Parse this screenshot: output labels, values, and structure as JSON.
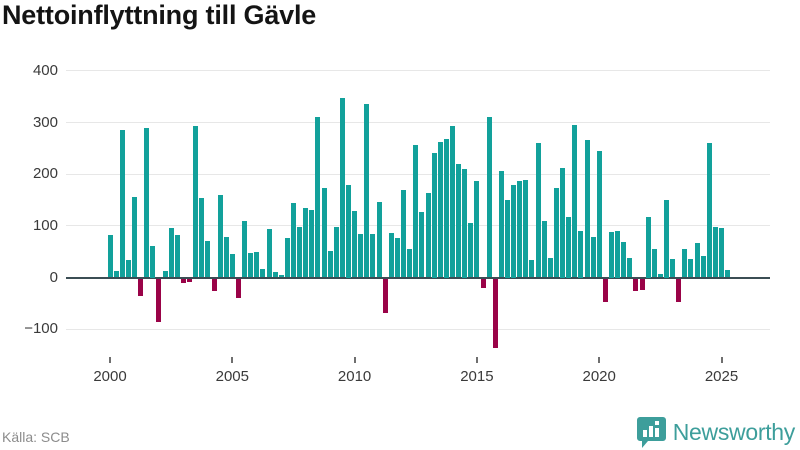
{
  "title": "Nettoinflyttning till Gävle",
  "source_label": "Källa: SCB",
  "brand": {
    "name": "Newsworthy"
  },
  "colors": {
    "positive_bar": "#12a19b",
    "negative_bar": "#9a0348",
    "zero_line": "#3b4d54",
    "gridline": "#e7e7e7",
    "axis_text": "#3a3a3a",
    "title_text": "#141414",
    "source_text": "#8c8c8c",
    "brand_teal": "#3d9e9b"
  },
  "chart_data": {
    "type": "bar",
    "title": "Nettoinflyttning till Gävle",
    "xlabel": "",
    "ylabel": "",
    "frequency": "quarterly",
    "first_period": "2000 Q1",
    "last_period": "2025 Q2",
    "y_ticks": [
      400,
      300,
      200,
      100,
      0,
      -100
    ],
    "ylim": [
      -160,
      415
    ],
    "x_tick_labels": [
      "2000",
      "2005",
      "2010",
      "2015",
      "2020",
      "2025"
    ],
    "grid": true,
    "legend": "none",
    "values_by_year": {
      "2000": [
        82,
        12,
        285,
        34
      ],
      "2001": [
        156,
        -34,
        290,
        61
      ],
      "2002": [
        -85,
        13,
        95,
        83
      ],
      "2003": [
        -8,
        -6,
        293,
        154
      ],
      "2004": [
        71,
        -24,
        160,
        78
      ],
      "2005": [
        45,
        -38,
        109,
        47
      ],
      "2006": [
        50,
        16,
        94,
        10
      ],
      "2007": [
        5,
        76,
        145,
        97
      ],
      "2008": [
        135,
        131,
        310,
        174
      ],
      "2009": [
        52,
        97,
        347,
        179
      ],
      "2010": [
        129,
        85,
        336,
        84
      ],
      "2011": [
        147,
        -66,
        87,
        76
      ],
      "2012": [
        169,
        55,
        256,
        127
      ],
      "2013": [
        164,
        242,
        263,
        269
      ],
      "2014": [
        293,
        220,
        211,
        106
      ],
      "2015": [
        187,
        -18,
        310,
        -134
      ],
      "2016": [
        207,
        150,
        179,
        187
      ],
      "2017": [
        189,
        34,
        260,
        110
      ],
      "2018": [
        37,
        173,
        213,
        118
      ],
      "2019": [
        295,
        91,
        266,
        79
      ],
      "2020": [
        245,
        -45,
        88,
        90
      ],
      "2021": [
        69,
        37,
        -25,
        -22
      ],
      "2022": [
        118,
        55,
        7,
        150
      ],
      "2023": [
        35,
        -45,
        56,
        35
      ],
      "2024": [
        66,
        42,
        261,
        98
      ],
      "2025": [
        96,
        15
      ]
    }
  }
}
